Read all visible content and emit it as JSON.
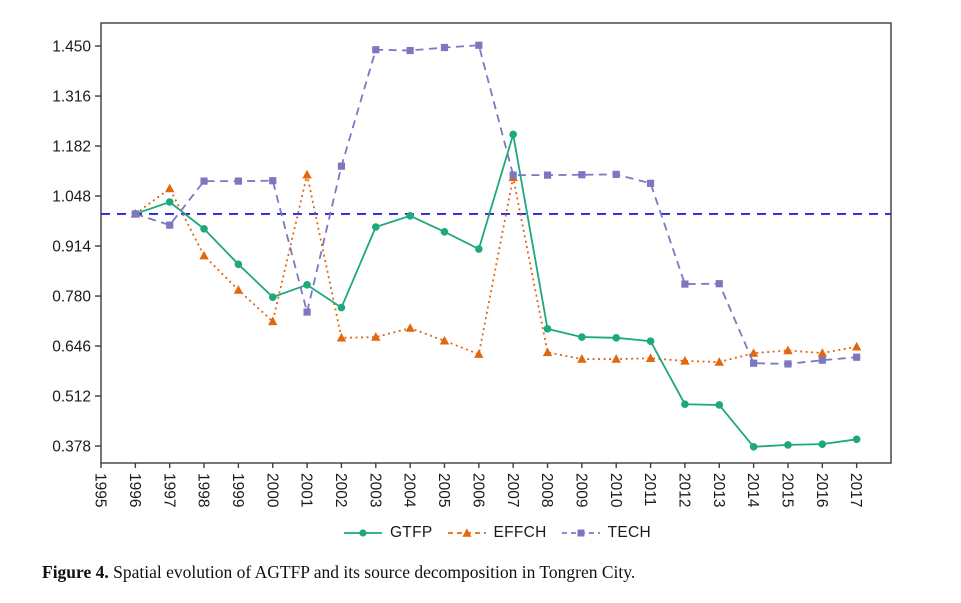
{
  "figure": {
    "caption_label": "Figure 4.",
    "caption_text": " Spatial evolution of AGTFP and its source decomposition in Tongren City."
  },
  "chart_data": {
    "type": "line",
    "title": "",
    "xlabel": "",
    "ylabel": "",
    "grid": false,
    "x": [
      1996,
      1997,
      1998,
      1999,
      2000,
      2001,
      2002,
      2003,
      2004,
      2005,
      2006,
      2007,
      2008,
      2009,
      2010,
      2011,
      2012,
      2013,
      2014,
      2015,
      2016,
      2017
    ],
    "series": [
      {
        "name": "EFFCH",
        "color": "#e2670f",
        "marker": "triangle",
        "line_style": "dotted",
        "values": [
          1.0,
          1.068,
          0.888,
          0.796,
          0.712,
          1.105,
          0.668,
          0.67,
          0.694,
          0.66,
          0.624,
          1.098,
          0.629,
          0.611,
          0.611,
          0.613,
          0.606,
          0.603,
          0.627,
          0.634,
          0.627,
          0.644
        ]
      },
      {
        "name": "GTFP",
        "color": "#1ea87c",
        "marker": "circle",
        "line_style": "solid",
        "values": [
          1.0,
          1.032,
          0.96,
          0.865,
          0.777,
          0.81,
          0.749,
          0.965,
          0.995,
          0.952,
          0.906,
          1.213,
          0.692,
          0.67,
          0.668,
          0.659,
          0.49,
          0.488,
          0.376,
          0.381,
          0.383,
          0.396
        ]
      },
      {
        "name": "TECH",
        "color": "#7d77c2",
        "marker": "square",
        "line_style": "dashed",
        "values": [
          1.0,
          0.97,
          1.088,
          1.088,
          1.089,
          0.737,
          1.128,
          1.44,
          1.438,
          1.446,
          1.452,
          1.104,
          1.104,
          1.105,
          1.106,
          1.082,
          0.812,
          0.813,
          0.6,
          0.598,
          0.608,
          0.616
        ]
      }
    ],
    "legend_order": [
      "GTFP",
      "EFFCH",
      "TECH"
    ],
    "legend_position": "bottom-center",
    "x_ticks": [
      1995,
      1996,
      1997,
      1998,
      1999,
      2000,
      2001,
      2002,
      2003,
      2004,
      2005,
      2006,
      2007,
      2008,
      2009,
      2010,
      2011,
      2012,
      2013,
      2014,
      2015,
      2016,
      2017
    ],
    "y_ticks": [
      "1.450",
      "1.316",
      "1.182",
      "1.048",
      "0.914",
      "0.780",
      "0.646",
      "0.512",
      "0.378"
    ],
    "xlim": [
      1995,
      2018
    ],
    "ylim": [
      0.3325,
      1.5117
    ],
    "reference_line": {
      "y": 1.0,
      "color": "#2626d9",
      "style": "dashed"
    },
    "axis_color": "#3c3c3c",
    "text_color": "#1a1a1a"
  }
}
